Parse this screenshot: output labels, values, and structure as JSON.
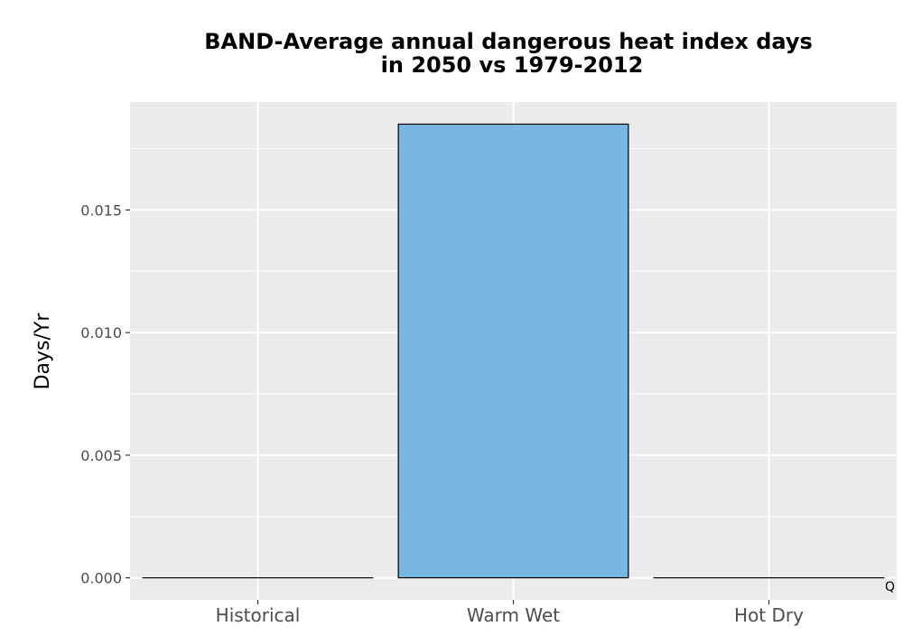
{
  "chart_data": {
    "type": "bar",
    "title_lines": [
      "BAND-Average annual dangerous heat index days",
      "in 2050 vs 1979-2012"
    ],
    "xlabel": "",
    "ylabel": "Days/Yr",
    "categories": [
      "Historical",
      "Warm Wet",
      "Hot Dry"
    ],
    "values": [
      0.0,
      0.0185,
      0.0
    ],
    "ylim": [
      -0.0009,
      0.0194
    ],
    "yticks": [
      0.0,
      0.005,
      0.01,
      0.015
    ],
    "ytick_labels": [
      "0.000",
      "0.005",
      "0.010",
      "0.015"
    ],
    "grid": true,
    "legend": "none",
    "bar_color": "#77b7e1",
    "bar_edge_color": "#000000",
    "panel_background": "#ebebeb",
    "grid_color": "#ffffff",
    "annotation": "Q"
  }
}
